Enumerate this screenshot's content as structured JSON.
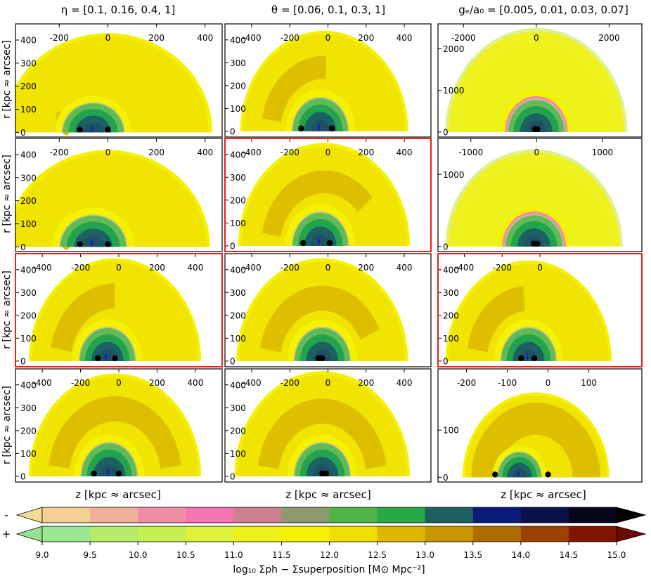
{
  "column_titles": [
    "η = [0.1,  0.16,  0.4,  1]",
    "θ = [0.06,  0.1,  0.3,  1]",
    "gₑ/a₀ = [0.005,  0.01,  0.03,  0.07]"
  ],
  "row_ylabel": "r [kpc ≈ arcsec]",
  "xlabel": "z [kpc ≈ arcsec]",
  "highlight_color": "#e8221b",
  "chart_data": [
    {
      "type": "heatmap",
      "row": 0,
      "col": 0,
      "highlight": false,
      "xticks": [
        -200,
        0,
        200,
        400
      ],
      "yticks": [
        0,
        100,
        200,
        300,
        400
      ],
      "xlim": [
        -380,
        470
      ],
      "ylim": [
        -20,
        470
      ],
      "outer_r": 430,
      "outer_cx": 0,
      "inner_r": 130,
      "inner_cx": -60,
      "band": null,
      "small_band": true,
      "points": [
        -115,
        0
      ]
    },
    {
      "type": "heatmap",
      "row": 0,
      "col": 1,
      "highlight": false,
      "xticks": [
        -400,
        -200,
        0,
        200,
        400
      ],
      "yticks": [
        0,
        100,
        200,
        300,
        400
      ],
      "xlim": [
        -540,
        540
      ],
      "ylim": [
        -25,
        470
      ],
      "outer_r": 440,
      "outer_cx": -20,
      "inner_r": 150,
      "inner_cx": -40,
      "band": {
        "r1": 230,
        "r2": 330,
        "a1": 88,
        "a2": 170
      },
      "small_band": false,
      "points": [
        -140,
        20
      ]
    },
    {
      "type": "heatmap",
      "row": 0,
      "col": 2,
      "highlight": false,
      "xticks": [
        -2000,
        0,
        2000
      ],
      "yticks": [
        0,
        1000,
        2000
      ],
      "xlim": [
        -2700,
        2900
      ],
      "ylim": [
        -120,
        2600
      ],
      "outer_r": 2500,
      "outer_cx": 0,
      "inner_r": 800,
      "inner_cx": 0,
      "band": null,
      "small_band": false,
      "points": [
        -40,
        30
      ],
      "pink_ring": true,
      "green_tint": true
    },
    {
      "type": "heatmap",
      "row": 1,
      "col": 0,
      "highlight": false,
      "xticks": [
        -200,
        0,
        200,
        400
      ],
      "yticks": [
        0,
        100,
        200,
        300,
        400
      ],
      "xlim": [
        -380,
        470
      ],
      "ylim": [
        -20,
        470
      ],
      "outer_r": 420,
      "outer_cx": 0,
      "inner_r": 140,
      "inner_cx": -60,
      "band": null,
      "small_band": true,
      "points": [
        -115,
        0
      ]
    },
    {
      "type": "heatmap",
      "row": 1,
      "col": 1,
      "highlight": true,
      "xticks": [
        -400,
        -200,
        0,
        200,
        400
      ],
      "yticks": [
        0,
        100,
        200,
        300,
        400
      ],
      "xlim": [
        -540,
        540
      ],
      "ylim": [
        -25,
        470
      ],
      "outer_r": 450,
      "outer_cx": -20,
      "inner_r": 150,
      "inner_cx": -40,
      "band": {
        "r1": 230,
        "r2": 330,
        "a1": 40,
        "a2": 170
      },
      "small_band": false,
      "points": [
        -130,
        10
      ]
    },
    {
      "type": "heatmap",
      "row": 1,
      "col": 2,
      "highlight": false,
      "xticks": [
        -1000,
        0,
        1000
      ],
      "yticks": [
        0,
        1000
      ],
      "xlim": [
        -1500,
        1600
      ],
      "ylim": [
        -70,
        1500
      ],
      "outer_r": 1350,
      "outer_cx": -40,
      "inner_r": 450,
      "inner_cx": -40,
      "band": null,
      "small_band": false,
      "points": [
        -40,
        10
      ],
      "pink_ring": true,
      "green_tint": true
    },
    {
      "type": "heatmap",
      "row": 2,
      "col": 0,
      "highlight": true,
      "xticks": [
        -400,
        -200,
        0,
        200,
        400
      ],
      "yticks": [
        0,
        100,
        200,
        300,
        400
      ],
      "xlim": [
        -540,
        540
      ],
      "ylim": [
        -25,
        470
      ],
      "outer_r": 450,
      "outer_cx": -20,
      "inner_r": 150,
      "inner_cx": -60,
      "band": {
        "r1": 230,
        "r2": 340,
        "a1": 90,
        "a2": 170
      },
      "small_band": false,
      "points": [
        -110,
        -20
      ]
    },
    {
      "type": "heatmap",
      "row": 2,
      "col": 1,
      "highlight": false,
      "xticks": [
        -400,
        -200,
        0,
        200,
        400
      ],
      "yticks": [
        0,
        100,
        200,
        300,
        400
      ],
      "xlim": [
        -540,
        540
      ],
      "ylim": [
        -25,
        470
      ],
      "outer_r": 450,
      "outer_cx": -30,
      "inner_r": 150,
      "inner_cx": -30,
      "band": {
        "r1": 220,
        "r2": 330,
        "a1": 25,
        "a2": 170
      },
      "small_band": false,
      "points": [
        -50,
        -30
      ]
    },
    {
      "type": "heatmap",
      "row": 2,
      "col": 2,
      "highlight": true,
      "xticks": [
        -400,
        -200,
        0
      ],
      "yticks": [
        0,
        100,
        200,
        300,
        400
      ],
      "xlim": [
        -540,
        540
      ],
      "ylim": [
        -25,
        470
      ],
      "outer_r": 440,
      "outer_cx": -60,
      "inner_r": 150,
      "inner_cx": -60,
      "band": {
        "r1": 220,
        "r2": 330,
        "a1": 95,
        "a2": 170
      },
      "small_band": false,
      "points": [
        -100,
        -30
      ]
    },
    {
      "type": "heatmap",
      "row": 3,
      "col": 0,
      "highlight": false,
      "xticks": [
        -400,
        -200,
        0,
        200,
        400
      ],
      "yticks": [
        0,
        100,
        200,
        300,
        400
      ],
      "xlim": [
        -540,
        540
      ],
      "ylim": [
        -25,
        470
      ],
      "outer_r": 450,
      "outer_cx": -20,
      "inner_r": 150,
      "inner_cx": -50,
      "band": {
        "r1": 240,
        "r2": 350,
        "a1": 8,
        "a2": 172
      },
      "small_band": false,
      "points": [
        -130,
        0
      ]
    },
    {
      "type": "heatmap",
      "row": 3,
      "col": 1,
      "highlight": false,
      "xticks": [
        -400,
        -200,
        0,
        200,
        400
      ],
      "yticks": [
        0,
        100,
        200,
        300,
        400
      ],
      "xlim": [
        -540,
        540
      ],
      "ylim": [
        -25,
        470
      ],
      "outer_r": 460,
      "outer_cx": -30,
      "inner_r": 150,
      "inner_cx": -30,
      "band": {
        "r1": 230,
        "r2": 340,
        "a1": 8,
        "a2": 172
      },
      "small_band": false,
      "points": [
        -30,
        -10
      ]
    },
    {
      "type": "heatmap",
      "row": 3,
      "col": 2,
      "highlight": false,
      "xticks": [
        -200,
        -100,
        0,
        100
      ],
      "yticks": [
        0,
        100
      ],
      "xlim": [
        -270,
        230
      ],
      "ylim": [
        -10,
        230
      ],
      "outer_r": 180,
      "outer_cx": -30,
      "inner_r": 55,
      "inner_cx": -70,
      "band": null,
      "small_band": false,
      "points": [
        -130,
        0
      ],
      "full_band": true
    },
    {
      "type": "colorbar",
      "label": "log₁₀ Σph − Σsuperposition  [M⊙ Mpc⁻²]",
      "ticks": [
        "9.0",
        "9.5",
        "10.0",
        "10.5",
        "11.0",
        "11.5",
        "12.0",
        "12.5",
        "13.0",
        "13.5",
        "14.0",
        "14.5",
        "15.0"
      ],
      "sign_minus": "-",
      "sign_plus": "+",
      "minus_colors": [
        "#f2dd93",
        "#f4d094",
        "#f2b09a",
        "#f08ea8",
        "#f574b2",
        "#cc8090",
        "#8e9a6e",
        "#4fb348",
        "#27a945",
        "#1e5f5f",
        "#0c1c7b",
        "#09104a",
        "#05051c",
        "#000000"
      ],
      "plus_colors": [
        "#98e091",
        "#9ae891",
        "#b4ec6a",
        "#c4f050",
        "#dff23a",
        "#eff219",
        "#f5f200",
        "#f1df00",
        "#ddb700",
        "#c99700",
        "#ae6d00",
        "#9a4200",
        "#801600",
        "#6b0a00"
      ]
    }
  ]
}
